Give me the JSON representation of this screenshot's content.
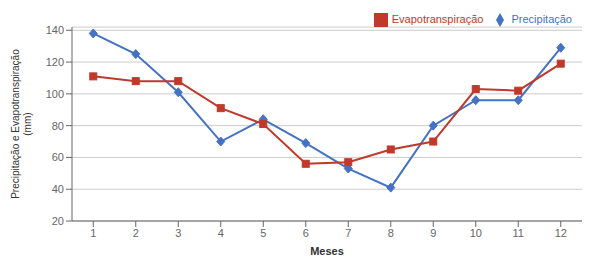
{
  "chart_data": {
    "type": "line",
    "xlabel": "Meses",
    "ylabel": "Precipitação e Evapotranspiração\n(mm)",
    "x": [
      1,
      2,
      3,
      4,
      5,
      6,
      7,
      8,
      9,
      10,
      11,
      12
    ],
    "series": [
      {
        "name": "Precipitação",
        "color": "#4472C4",
        "marker": "diamond",
        "values": [
          138,
          125,
          101,
          70,
          84,
          69,
          53,
          41,
          80,
          96,
          96,
          129
        ]
      },
      {
        "name": "Evapotranspiração",
        "color": "#C0392B",
        "marker": "square",
        "values": [
          111,
          108,
          108,
          91,
          81,
          56,
          57,
          65,
          70,
          103,
          102,
          119
        ]
      }
    ],
    "xlim": [
      0.5,
      12.5
    ],
    "xticks": [
      1,
      2,
      3,
      4,
      5,
      6,
      7,
      8,
      9,
      10,
      11,
      12
    ],
    "ylim": [
      20,
      142
    ],
    "yticks": [
      20,
      40,
      60,
      80,
      100,
      120,
      140
    ],
    "grid": true,
    "legend": "upper right"
  }
}
